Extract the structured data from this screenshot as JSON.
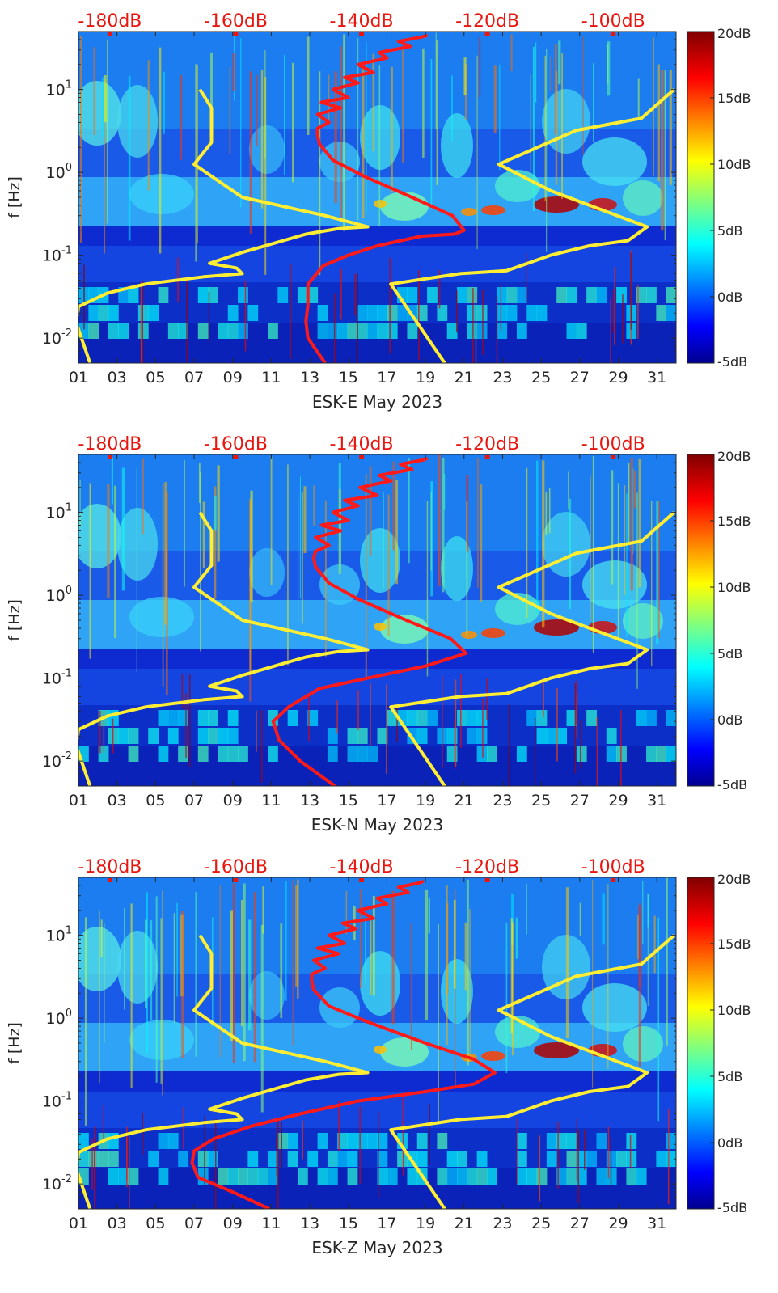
{
  "chart_data": [
    {
      "type": "heatmap",
      "title": "",
      "xlabel": "ESK-E May 2023",
      "ylabel": "f [Hz]",
      "x_ticks": [
        "01",
        "03",
        "05",
        "07",
        "09",
        "11",
        "13",
        "15",
        "17",
        "19",
        "21",
        "23",
        "25",
        "27",
        "29",
        "31"
      ],
      "x_range_days": [
        1,
        32
      ],
      "y_scale": "log",
      "y_range_hz": [
        0.005,
        50
      ],
      "y_ticks": [
        {
          "value": 0.01,
          "base": "10",
          "exp": "-2"
        },
        {
          "value": 0.1,
          "base": "10",
          "exp": "-1"
        },
        {
          "value": 1,
          "base": "10",
          "exp": "0"
        },
        {
          "value": 10,
          "base": "10",
          "exp": "1"
        }
      ],
      "top_axis_labels": [
        "-180dB",
        "-160dB",
        "-140dB",
        "-120dB",
        "-100dB"
      ],
      "top_axis_range_db": [
        -185,
        -90
      ],
      "colorbar": {
        "range_db": [
          -5,
          20
        ],
        "ticks": [
          "20dB",
          "15dB",
          "10dB",
          "5dB",
          "0dB",
          "-5dB"
        ],
        "colormap": "jet"
      },
      "series": [
        {
          "color": "#ffee33",
          "x": [
            1.6,
            0.9,
            1.0,
            2.5,
            4.5,
            7.5,
            9.5,
            9.2,
            7.8,
            9.6,
            12.8,
            14.5,
            16.0,
            13.8,
            9.5,
            7.0,
            7.9,
            7.9,
            7.3
          ],
          "y": [
            0.005,
            0.015,
            0.024,
            0.035,
            0.045,
            0.055,
            0.06,
            0.07,
            0.08,
            0.11,
            0.18,
            0.21,
            0.22,
            0.3,
            0.5,
            1.25,
            2.3,
            6,
            10
          ]
        },
        {
          "color": "#ffee33",
          "x": [
            20.0,
            17.2,
            20.8,
            23.2,
            25.5,
            27.5,
            29.5,
            30.5,
            25.5,
            22.8,
            26.8,
            30.2,
            31.9
          ],
          "y": [
            0.005,
            0.045,
            0.06,
            0.065,
            0.1,
            0.13,
            0.15,
            0.22,
            0.6,
            1.25,
            3.2,
            4.5,
            10
          ]
        },
        {
          "color": "#ff1a1a",
          "x": [
            13.8,
            12.9,
            12.8,
            12.9,
            12.9,
            13.7,
            15.0,
            16.5,
            18.8,
            20.5,
            21.0,
            20.4,
            18.3,
            15.8,
            14.2,
            13.5,
            13.4,
            13.4,
            14.0,
            13.4,
            14.6,
            13.6,
            15.0,
            14.2,
            15.5,
            14.8,
            16.3,
            15.5,
            17.0,
            16.6,
            18.2,
            17.6,
            18.8,
            19.1
          ],
          "y": [
            0.005,
            0.01,
            0.016,
            0.025,
            0.045,
            0.075,
            0.1,
            0.13,
            0.17,
            0.18,
            0.2,
            0.3,
            0.5,
            0.9,
            1.4,
            2.2,
            2.8,
            3.4,
            4,
            5,
            6,
            7,
            8,
            10,
            12,
            14,
            16,
            20,
            24,
            28,
            33,
            38,
            43,
            45
          ]
        }
      ]
    },
    {
      "type": "heatmap",
      "title": "",
      "xlabel": "ESK-N May 2023",
      "ylabel": "f [Hz]",
      "x_ticks": [
        "01",
        "03",
        "05",
        "07",
        "09",
        "11",
        "13",
        "15",
        "17",
        "19",
        "21",
        "23",
        "25",
        "27",
        "29",
        "31"
      ],
      "x_range_days": [
        1,
        32
      ],
      "y_scale": "log",
      "y_range_hz": [
        0.005,
        50
      ],
      "y_ticks": [
        {
          "value": 0.01,
          "base": "10",
          "exp": "-2"
        },
        {
          "value": 0.1,
          "base": "10",
          "exp": "-1"
        },
        {
          "value": 1,
          "base": "10",
          "exp": "0"
        },
        {
          "value": 10,
          "base": "10",
          "exp": "1"
        }
      ],
      "top_axis_labels": [
        "-180dB",
        "-160dB",
        "-140dB",
        "-120dB",
        "-100dB"
      ],
      "top_axis_range_db": [
        -185,
        -90
      ],
      "colorbar": {
        "range_db": [
          -5,
          20
        ],
        "ticks": [
          "20dB",
          "15dB",
          "10dB",
          "5dB",
          "0dB",
          "-5dB"
        ],
        "colormap": "jet"
      },
      "series": [
        {
          "color": "#ffee33",
          "x": [
            1.6,
            0.9,
            1.0,
            2.5,
            4.5,
            7.5,
            9.5,
            9.2,
            7.8,
            9.6,
            12.8,
            14.5,
            16.0,
            13.8,
            9.5,
            7.0,
            7.9,
            7.9,
            7.3
          ],
          "y": [
            0.005,
            0.015,
            0.024,
            0.035,
            0.045,
            0.055,
            0.06,
            0.07,
            0.08,
            0.11,
            0.18,
            0.21,
            0.22,
            0.3,
            0.5,
            1.25,
            2.3,
            6,
            10
          ]
        },
        {
          "color": "#ffee33",
          "x": [
            20.0,
            17.2,
            20.8,
            23.2,
            25.5,
            27.5,
            29.5,
            30.5,
            25.5,
            22.8,
            26.8,
            30.2,
            31.9
          ],
          "y": [
            0.005,
            0.045,
            0.06,
            0.065,
            0.1,
            0.13,
            0.15,
            0.22,
            0.6,
            1.25,
            3.2,
            4.5,
            10
          ]
        },
        {
          "color": "#ff1a1a",
          "x": [
            14.3,
            12.5,
            11.4,
            11.1,
            11.9,
            13.5,
            16.0,
            19.0,
            21.1,
            20.3,
            18.0,
            15.5,
            14.0,
            13.3,
            13.2,
            13.3,
            14.0,
            13.3,
            14.6,
            13.6,
            15.0,
            14.2,
            15.5,
            14.8,
            16.5,
            15.6,
            17.2,
            16.6,
            18.3,
            17.7,
            18.9,
            19.1
          ],
          "y": [
            0.005,
            0.01,
            0.018,
            0.03,
            0.045,
            0.075,
            0.1,
            0.14,
            0.2,
            0.3,
            0.5,
            0.9,
            1.4,
            2.2,
            2.8,
            3.4,
            4,
            5,
            6,
            7,
            8,
            10,
            12,
            14,
            16,
            20,
            24,
            28,
            33,
            38,
            43,
            45
          ]
        }
      ]
    },
    {
      "type": "heatmap",
      "title": "",
      "xlabel": "ESK-Z May 2023",
      "ylabel": "f [Hz]",
      "x_ticks": [
        "01",
        "03",
        "05",
        "07",
        "09",
        "11",
        "13",
        "15",
        "17",
        "19",
        "21",
        "23",
        "25",
        "27",
        "29",
        "31"
      ],
      "x_range_days": [
        1,
        32
      ],
      "y_scale": "log",
      "y_range_hz": [
        0.005,
        50
      ],
      "y_ticks": [
        {
          "value": 0.01,
          "base": "10",
          "exp": "-2"
        },
        {
          "value": 0.1,
          "base": "10",
          "exp": "-1"
        },
        {
          "value": 1,
          "base": "10",
          "exp": "0"
        },
        {
          "value": 10,
          "base": "10",
          "exp": "1"
        }
      ],
      "top_axis_labels": [
        "-180dB",
        "-160dB",
        "-140dB",
        "-120dB",
        "-100dB"
      ],
      "top_axis_range_db": [
        -185,
        -90
      ],
      "colorbar": {
        "range_db": [
          -5,
          20
        ],
        "ticks": [
          "20dB",
          "15dB",
          "10dB",
          "5dB",
          "0dB",
          "-5dB"
        ],
        "colormap": "jet"
      },
      "series": [
        {
          "color": "#ffee33",
          "x": [
            1.6,
            0.9,
            1.0,
            2.5,
            4.5,
            7.5,
            9.5,
            9.2,
            7.8,
            9.6,
            12.8,
            14.5,
            16.0,
            13.8,
            9.5,
            7.0,
            7.9,
            7.9,
            7.3
          ],
          "y": [
            0.005,
            0.015,
            0.024,
            0.035,
            0.045,
            0.055,
            0.06,
            0.07,
            0.08,
            0.11,
            0.18,
            0.21,
            0.22,
            0.3,
            0.5,
            1.25,
            2.3,
            6,
            10
          ]
        },
        {
          "color": "#ffee33",
          "x": [
            20.0,
            17.2,
            20.8,
            23.2,
            25.5,
            27.5,
            29.5,
            30.5,
            25.5,
            22.8,
            26.8,
            30.2,
            31.9
          ],
          "y": [
            0.005,
            0.045,
            0.06,
            0.065,
            0.1,
            0.13,
            0.15,
            0.22,
            0.6,
            1.25,
            3.2,
            4.5,
            10
          ]
        },
        {
          "color": "#ff1a1a",
          "x": [
            10.9,
            9.0,
            7.2,
            6.9,
            7.0,
            8.0,
            10.0,
            12.5,
            15.5,
            19.0,
            21.5,
            22.6,
            21.5,
            19.0,
            16.0,
            14.0,
            13.2,
            13.1,
            13.1,
            13.8,
            13.2,
            14.5,
            13.4,
            14.8,
            14.0,
            15.4,
            14.7,
            16.3,
            15.5,
            17.0,
            16.5,
            18.1,
            17.6,
            18.7,
            18.9
          ],
          "y": [
            0.005,
            0.008,
            0.012,
            0.018,
            0.025,
            0.035,
            0.05,
            0.07,
            0.1,
            0.13,
            0.16,
            0.22,
            0.32,
            0.5,
            0.9,
            1.4,
            2.2,
            2.8,
            3.4,
            4,
            5,
            6,
            7,
            8,
            10,
            12,
            14,
            16,
            20,
            24,
            28,
            33,
            38,
            43,
            45
          ]
        }
      ]
    }
  ]
}
